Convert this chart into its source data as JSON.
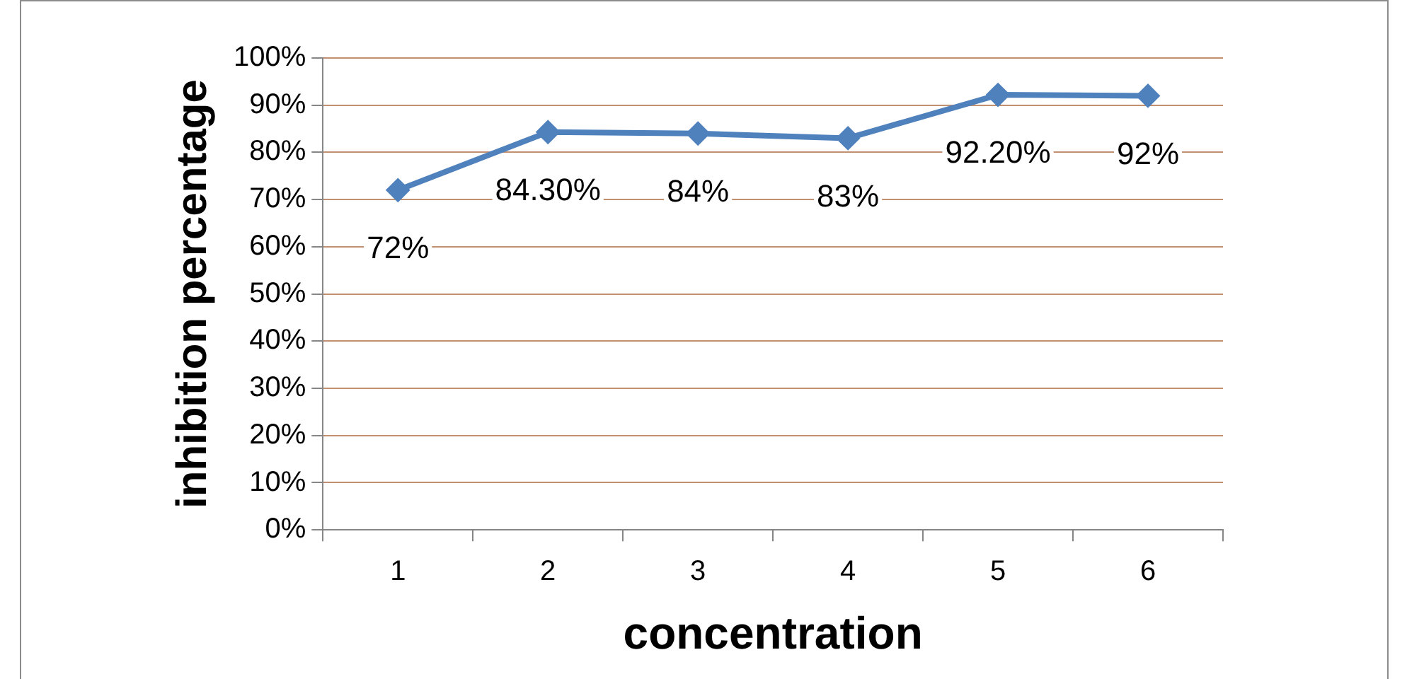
{
  "chart_data": {
    "type": "line",
    "xlabel": "concentration",
    "ylabel": "inhibition percentage",
    "categories": [
      "1",
      "2",
      "3",
      "4",
      "5",
      "6"
    ],
    "series": [
      {
        "color": "#4f81bd",
        "values": [
          72,
          84.3,
          84,
          83,
          92.2,
          92
        ],
        "value_labels": [
          "72%",
          "84.30%",
          "84%",
          "83%",
          "92.20%",
          "92%"
        ]
      }
    ],
    "ylim": [
      0,
      100
    ],
    "yticks": [
      {
        "value": 0,
        "label": "0%"
      },
      {
        "value": 10,
        "label": "10%"
      },
      {
        "value": 20,
        "label": "20%"
      },
      {
        "value": 30,
        "label": "30%"
      },
      {
        "value": 40,
        "label": "40%"
      },
      {
        "value": 50,
        "label": "50%"
      },
      {
        "value": 60,
        "label": "60%"
      },
      {
        "value": 70,
        "label": "70%"
      },
      {
        "value": 80,
        "label": "80%"
      },
      {
        "value": 90,
        "label": "90%"
      },
      {
        "value": 100,
        "label": "100%"
      }
    ],
    "grid": "y",
    "legend": false,
    "marker": "diamond",
    "line_style": "solid"
  }
}
